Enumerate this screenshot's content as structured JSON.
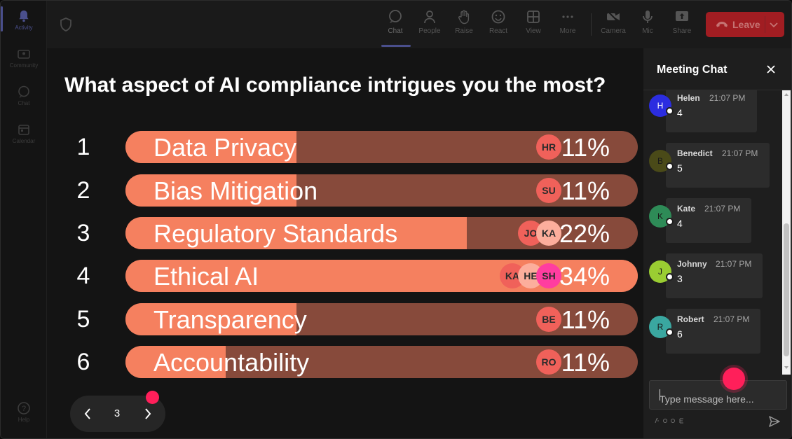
{
  "rail": {
    "items": [
      {
        "label": "Activity",
        "icon": "bell-icon",
        "active": true
      },
      {
        "label": "Community",
        "icon": "community-icon",
        "active": false
      },
      {
        "label": "Chat",
        "icon": "chat-icon",
        "active": false
      },
      {
        "label": "Calendar",
        "icon": "calendar-icon",
        "active": false
      }
    ],
    "help_label": "Help"
  },
  "toolbar": {
    "buttons": [
      {
        "label": "Chat",
        "icon": "chat-icon",
        "active": true
      },
      {
        "label": "People",
        "icon": "people-icon"
      },
      {
        "label": "Raise",
        "icon": "raise-hand-icon"
      },
      {
        "label": "React",
        "icon": "react-icon"
      },
      {
        "label": "View",
        "icon": "grid-view-icon"
      },
      {
        "label": "More",
        "icon": "more-icon"
      },
      {
        "label": "Camera",
        "icon": "camera-off-icon"
      },
      {
        "label": "Mic",
        "icon": "mic-icon"
      },
      {
        "label": "Share",
        "icon": "share-icon"
      }
    ],
    "leave_label": "Leave"
  },
  "poll": {
    "question": "What aspect of AI compliance intrigues you the most?",
    "options": [
      {
        "num": "1",
        "label": "Data Privacy",
        "pct": "11%",
        "value": 11,
        "voters": [
          "HR"
        ]
      },
      {
        "num": "2",
        "label": "Bias Mitigation",
        "pct": "11%",
        "value": 11,
        "voters": [
          "SU"
        ]
      },
      {
        "num": "3",
        "label": "Regulatory Standards",
        "pct": "22%",
        "value": 22,
        "voters": [
          "JO",
          "KA"
        ]
      },
      {
        "num": "4",
        "label": "Ethical AI",
        "pct": "34%",
        "value": 34,
        "voters": [
          "KA",
          "HE",
          "SH"
        ]
      },
      {
        "num": "5",
        "label": "Transparency",
        "pct": "11%",
        "value": 11,
        "voters": [
          "BE"
        ]
      },
      {
        "num": "6",
        "label": "Accountability",
        "pct": "11%",
        "value": 11,
        "voters": [
          "RO"
        ]
      }
    ],
    "colors": {
      "fill": "#f5805f",
      "track": "#874a3b"
    },
    "page": "3"
  },
  "chat": {
    "title": "Meeting Chat",
    "messages": [
      {
        "initial": "H",
        "name": "Helen",
        "time": "21:07 PM",
        "text": "4",
        "color": "#2b2de0"
      },
      {
        "initial": "B",
        "name": "Benedict",
        "time": "21:07 PM",
        "text": "5",
        "color": "#4a4a18"
      },
      {
        "initial": "K",
        "name": "Kate",
        "time": "21:07 PM",
        "text": "4",
        "color": "#2e8b57"
      },
      {
        "initial": "J",
        "name": "Johnny",
        "time": "21:07 PM",
        "text": "3",
        "color": "#9acd32"
      },
      {
        "initial": "R",
        "name": "Robert",
        "time": "21:07 PM",
        "text": "6",
        "color": "#3aa7a0"
      }
    ],
    "input_placeholder": "Type message here..."
  }
}
